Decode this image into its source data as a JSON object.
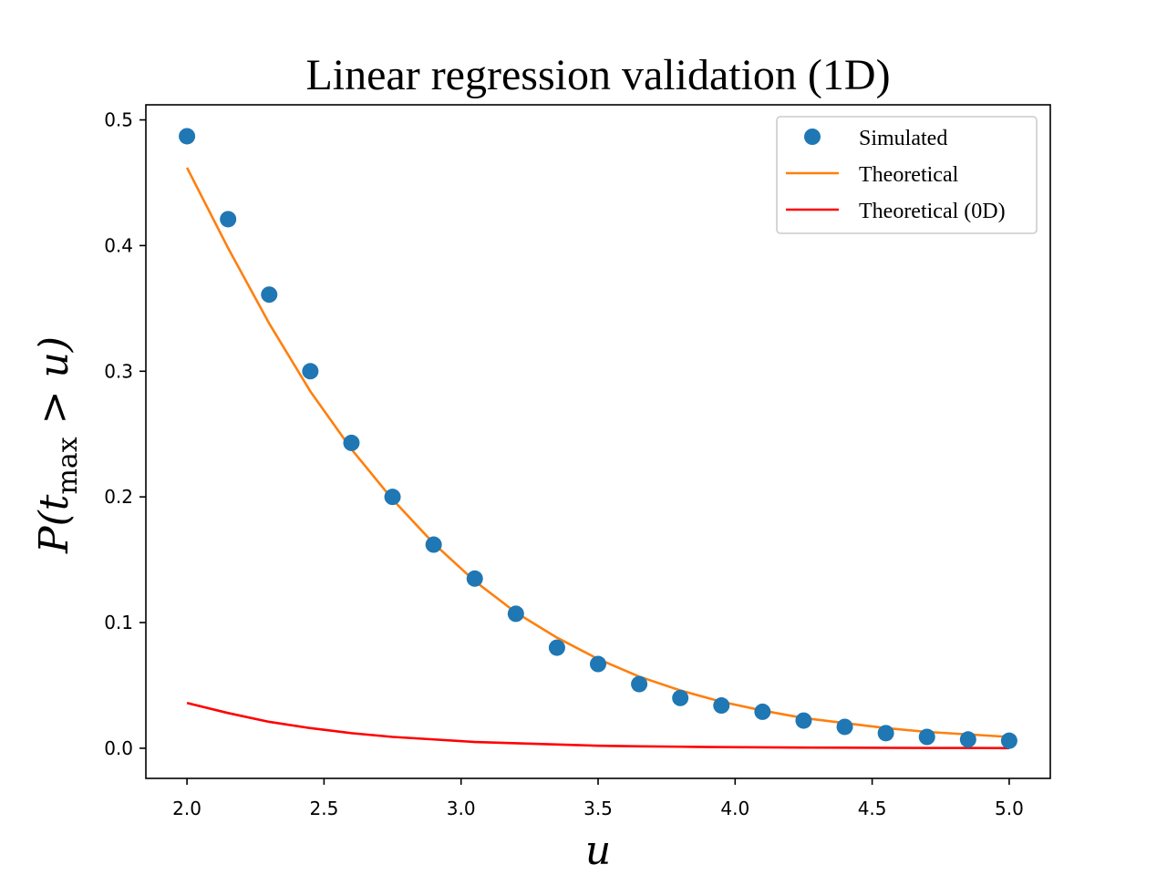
{
  "chart_data": {
    "type": "line",
    "title": "Linear regression validation (1D)",
    "xlabel": "u",
    "ylabel": {
      "prefix": "P(t",
      "subscript": "max",
      "suffix": " > u)"
    },
    "xlim": [
      1.85,
      5.15
    ],
    "ylim": [
      -0.024,
      0.512
    ],
    "xticks": [
      {
        "value": 2.0,
        "label": "2.0"
      },
      {
        "value": 2.5,
        "label": "2.5"
      },
      {
        "value": 3.0,
        "label": "3.0"
      },
      {
        "value": 3.5,
        "label": "3.5"
      },
      {
        "value": 4.0,
        "label": "4.0"
      },
      {
        "value": 4.5,
        "label": "4.5"
      },
      {
        "value": 5.0,
        "label": "5.0"
      }
    ],
    "yticks": [
      {
        "value": 0.0,
        "label": "0.0"
      },
      {
        "value": 0.1,
        "label": "0.1"
      },
      {
        "value": 0.2,
        "label": "0.2"
      },
      {
        "value": 0.3,
        "label": "0.3"
      },
      {
        "value": 0.4,
        "label": "0.4"
      },
      {
        "value": 0.5,
        "label": "0.5"
      }
    ],
    "grid": false,
    "legend_position": "top-right",
    "series": [
      {
        "name": "Simulated",
        "kind": "scatter",
        "color": "#1f77b4",
        "x": [
          2.0,
          2.15,
          2.3,
          2.45,
          2.6,
          2.75,
          2.9,
          3.05,
          3.2,
          3.35,
          3.5,
          3.65,
          3.8,
          3.95,
          4.1,
          4.25,
          4.4,
          4.55,
          4.7,
          4.85,
          5.0
        ],
        "y": [
          0.487,
          0.421,
          0.361,
          0.3,
          0.243,
          0.2,
          0.162,
          0.135,
          0.107,
          0.08,
          0.067,
          0.051,
          0.04,
          0.034,
          0.029,
          0.022,
          0.017,
          0.012,
          0.009,
          0.007,
          0.006
        ]
      },
      {
        "name": "Theoretical",
        "kind": "line",
        "color": "#ff7f0e",
        "x": [
          2.0,
          2.15,
          2.3,
          2.45,
          2.6,
          2.75,
          2.9,
          3.05,
          3.2,
          3.35,
          3.5,
          3.65,
          3.8,
          3.95,
          4.1,
          4.25,
          4.4,
          4.55,
          4.7,
          4.85,
          5.0
        ],
        "y": [
          0.462,
          0.398,
          0.338,
          0.284,
          0.238,
          0.198,
          0.163,
          0.133,
          0.108,
          0.088,
          0.071,
          0.057,
          0.046,
          0.037,
          0.03,
          0.024,
          0.02,
          0.016,
          0.013,
          0.011,
          0.009
        ]
      },
      {
        "name": "Theoretical (0D)",
        "kind": "line",
        "color": "#ff0000",
        "x": [
          2.0,
          2.15,
          2.3,
          2.45,
          2.6,
          2.75,
          2.9,
          3.05,
          3.2,
          3.35,
          3.5,
          3.65,
          3.8,
          3.95,
          4.1,
          4.25,
          4.4,
          4.55,
          4.7,
          4.85,
          5.0
        ],
        "y": [
          0.036,
          0.028,
          0.021,
          0.016,
          0.012,
          0.009,
          0.007,
          0.005,
          0.004,
          0.003,
          0.002,
          0.0015,
          0.0012,
          0.0009,
          0.0007,
          0.0005,
          0.0004,
          0.0003,
          0.0002,
          0.0002,
          0.0001
        ]
      }
    ]
  }
}
